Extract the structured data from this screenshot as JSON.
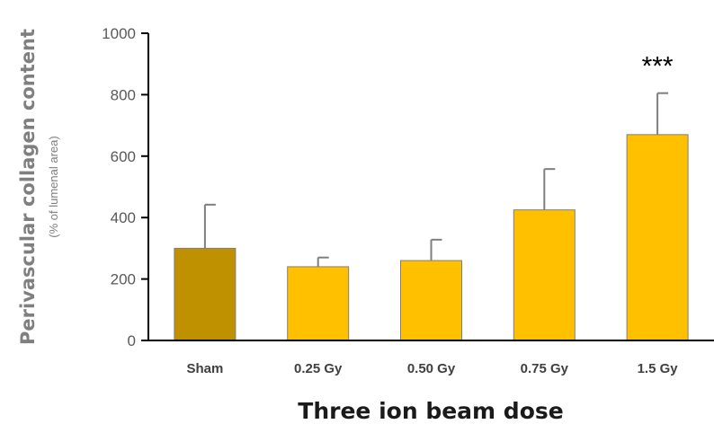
{
  "chart_data": {
    "type": "bar",
    "categories": [
      "Sham",
      "0.25 Gy",
      "0.50 Gy",
      "0.75 Gy",
      "1.5 Gy"
    ],
    "values": [
      300,
      240,
      260,
      425,
      670
    ],
    "errors": [
      142,
      30,
      68,
      133,
      135
    ],
    "colors": [
      "#bf9000",
      "#ffc000",
      "#ffc000",
      "#ffc000",
      "#ffc000"
    ],
    "ylim": [
      0,
      1000
    ],
    "yticks": [
      "0",
      "200",
      "400",
      "600",
      "800",
      "1000"
    ],
    "xlabel": "Three ion beam dose",
    "ylabel": "Perivascular collagen content",
    "ylabel_sub": "(% of lumenal area)",
    "annotations": [
      {
        "category": "1.5 Gy",
        "text": "***"
      }
    ],
    "grid": false,
    "legend": "none"
  }
}
